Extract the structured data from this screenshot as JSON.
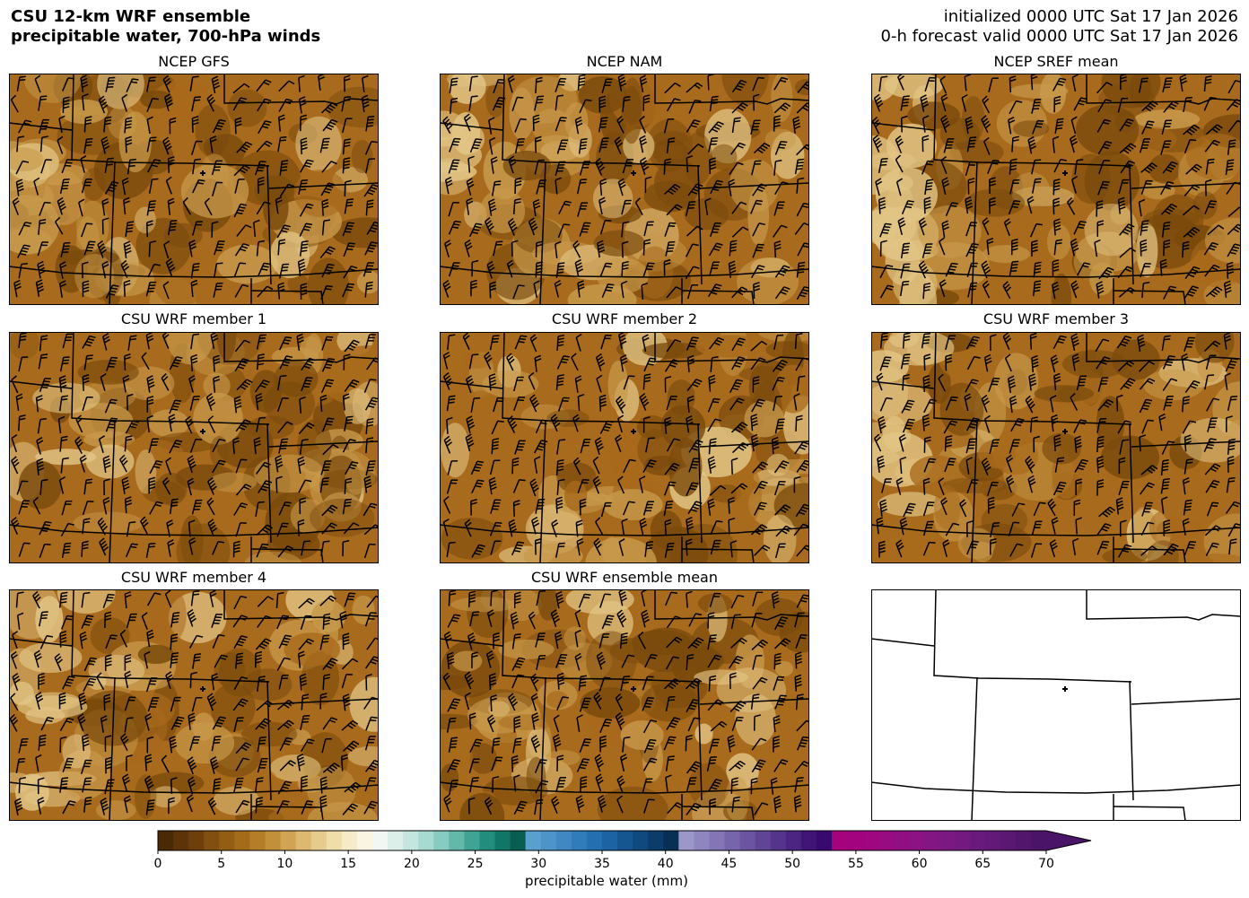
{
  "header": {
    "title_line1": "CSU 12-km WRF ensemble",
    "title_line2": "precipitable water, 700-hPa winds",
    "init_line": "initialized 0000 UTC Sat 17 Jan 2026",
    "valid_line": "0-h forecast valid 0000 UTC Sat 17 Jan 2026"
  },
  "panels": [
    {
      "title": "NCEP GFS",
      "variant": "a"
    },
    {
      "title": "NCEP NAM",
      "variant": "b"
    },
    {
      "title": "NCEP SREF mean",
      "variant": "c"
    },
    {
      "title": "CSU WRF member 1",
      "variant": "d"
    },
    {
      "title": "CSU WRF member 2",
      "variant": "e"
    },
    {
      "title": "CSU WRF member 3",
      "variant": "f"
    },
    {
      "title": "CSU WRF member 4",
      "variant": "g"
    },
    {
      "title": "CSU WRF ensemble mean",
      "variant": "h"
    },
    {
      "title": "",
      "variant": "empty"
    }
  ],
  "colors": {
    "pw_dark": "#7a4a0c",
    "pw_mid": "#a86a1c",
    "pw_light": "#c89a4c",
    "pw_pale": "#e2c585",
    "border": "#000000"
  },
  "colorbar": {
    "label": "precipitable water (mm)",
    "ticks": [
      "0",
      "5",
      "10",
      "15",
      "20",
      "25",
      "30",
      "35",
      "40",
      "45",
      "50",
      "55",
      "60",
      "65",
      "70"
    ],
    "colors": [
      "#4a2a05",
      "#5c3407",
      "#6e3f0a",
      "#82500e",
      "#935d13",
      "#a46b1a",
      "#b47d27",
      "#c28f3a",
      "#d0a453",
      "#dcb96e",
      "#e6cc8c",
      "#efddaa",
      "#f6ebc8",
      "#faf4e2",
      "#f2f7f3",
      "#dcefe9",
      "#c4e6de",
      "#a7dbd1",
      "#86ccc0",
      "#62b9aa",
      "#3fa493",
      "#238d7d",
      "#117666",
      "#085f51",
      "#5aa0cf",
      "#4d94c9",
      "#3f88c2",
      "#307bba",
      "#236fb0",
      "#1b63a2",
      "#155691",
      "#10497e",
      "#0c3c69",
      "#083055",
      "#9b97c8",
      "#8f86c0",
      "#8375b6",
      "#7765ac",
      "#6b55a2",
      "#604597",
      "#55358c",
      "#4b2581",
      "#411577",
      "#38096e",
      "#a6027e",
      "#a4037f",
      "#9e0780",
      "#980b81",
      "#910f82",
      "#8b1383",
      "#831683",
      "#7b1881",
      "#73197f",
      "#6a197c",
      "#621977",
      "#5a1872",
      "#52176d",
      "#4a1568"
    ]
  }
}
